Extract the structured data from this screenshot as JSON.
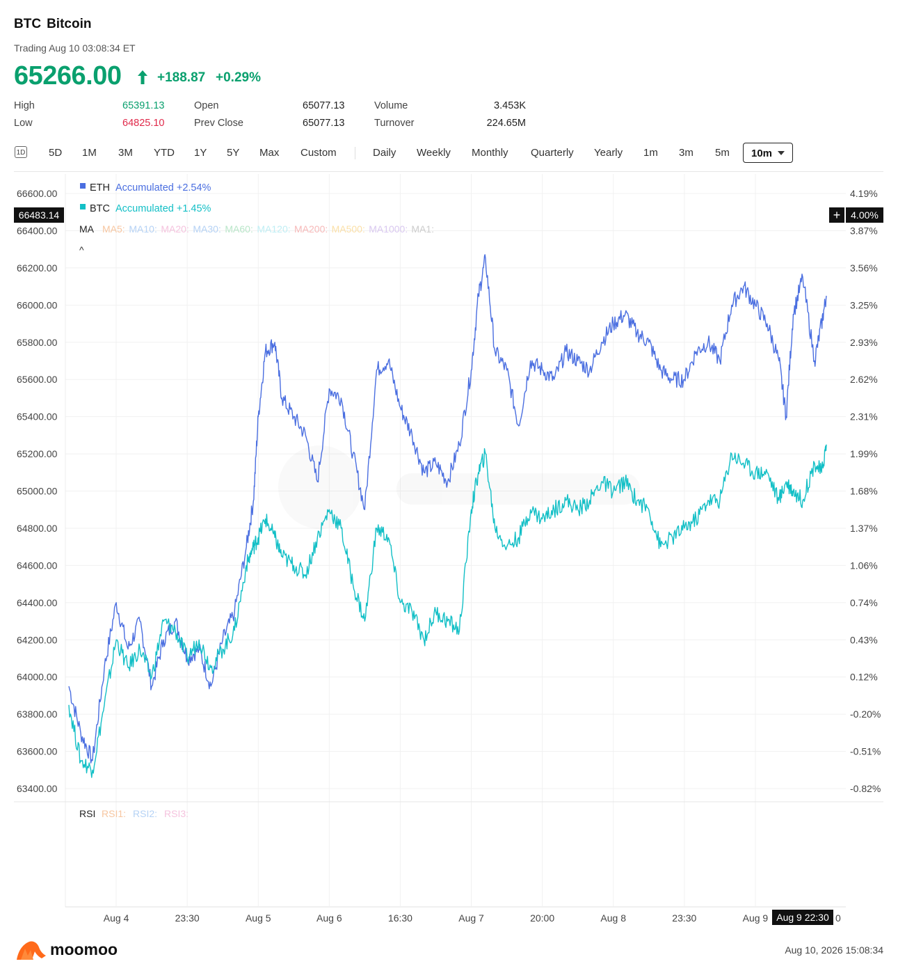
{
  "header": {
    "symbol": "BTC",
    "name": "Bitcoin",
    "trading_status": "Trading Aug 10 03:08:34 ET",
    "price": "65266.00",
    "change": "+188.87",
    "change_pct": "+0.29%"
  },
  "stats": {
    "high_label": "High",
    "high_value": "65391.13",
    "low_label": "Low",
    "low_value": "64825.10",
    "open_label": "Open",
    "open_value": "65077.13",
    "prev_close_label": "Prev Close",
    "prev_close_value": "65077.13",
    "volume_label": "Volume",
    "volume_value": "3.453K",
    "turnover_label": "Turnover",
    "turnover_value": "224.65M"
  },
  "tabs": {
    "range_icon": "1D",
    "ranges": [
      "5D",
      "1M",
      "3M",
      "YTD",
      "1Y",
      "5Y",
      "Max",
      "Custom"
    ],
    "intervals": [
      "Daily",
      "Weekly",
      "Monthly",
      "Quarterly",
      "Yearly",
      "1m",
      "3m",
      "5m"
    ],
    "selected_interval": "10m"
  },
  "legend": {
    "eth_name": "ETH",
    "eth_text": "Accumulated +2.54%",
    "btc_name": "BTC",
    "btc_text": "Accumulated +1.45%",
    "ma_label": "MA",
    "ma_items": [
      "MA5:",
      "MA10:",
      "MA20:",
      "MA30:",
      "MA60:",
      "MA120:",
      "MA200:",
      "MA500:",
      "MA1000:",
      "MA1:"
    ],
    "ma_colors": [
      "#f7c6a0",
      "#b5d2f5",
      "#f5c3de",
      "#b5d2f5",
      "#b9e6c9",
      "#bfeef4",
      "#f7b9b9",
      "#fbe0a8",
      "#d9c8f0",
      "#cccccc"
    ],
    "collapse_glyph": "^",
    "rsi_label": "RSI",
    "rsi_items": [
      "RSI1:",
      "RSI2:",
      "RSI3:"
    ],
    "rsi_colors": [
      "#f7c6a0",
      "#b5d2f5",
      "#f5c3de"
    ]
  },
  "crosshair": {
    "left_value": "66483.14",
    "right_value": "4.00%",
    "plus_glyph": "+",
    "time_label": "Aug 9 22:30",
    "trailing_char": "0"
  },
  "colors": {
    "eth": "#4a6ee0",
    "btc": "#12bfc6",
    "up": "#0aa06e",
    "down": "#e0294a"
  },
  "chart_data": {
    "type": "line",
    "y_left_ticks": [
      "66600.00",
      "66400.00",
      "66200.00",
      "66000.00",
      "65800.00",
      "65600.00",
      "65400.00",
      "65200.00",
      "65000.00",
      "64800.00",
      "64600.00",
      "64400.00",
      "64200.00",
      "64000.00",
      "63800.00",
      "63600.00",
      "63400.00"
    ],
    "y_right_ticks": [
      "4.19%",
      "3.87%",
      "3.56%",
      "3.25%",
      "2.93%",
      "2.62%",
      "2.31%",
      "1.99%",
      "1.68%",
      "1.37%",
      "1.06%",
      "0.74%",
      "0.43%",
      "0.12%",
      "-0.20%",
      "-0.51%",
      "-0.82%"
    ],
    "ylim": [
      63400,
      66600
    ],
    "x_ticks": [
      "Aug 4",
      "23:30",
      "Aug 5",
      "Aug 6",
      "16:30",
      "Aug 7",
      "20:00",
      "Aug 8",
      "23:30",
      "Aug 9"
    ],
    "x_range": [
      0,
      32
    ],
    "x_tick_positions": [
      2,
      5,
      8,
      11,
      14,
      17,
      20,
      23,
      26,
      29
    ],
    "series": [
      {
        "name": "ETH",
        "color": "#4a6ee0",
        "x": [
          0,
          0.5,
          1,
          1.5,
          2,
          2.5,
          3,
          3.5,
          4,
          4.5,
          5,
          5.5,
          6,
          6.5,
          7,
          7.5,
          7.8,
          8,
          8.3,
          8.7,
          9,
          9.5,
          10,
          10.5,
          11,
          11.5,
          12,
          12.5,
          13,
          13.5,
          14,
          14.5,
          15,
          15.5,
          16,
          16.5,
          17,
          17.3,
          17.6,
          18,
          18.5,
          19,
          19.5,
          20,
          20.5,
          21,
          21.5,
          22,
          22.5,
          23,
          23.5,
          24,
          24.5,
          25,
          25.5,
          26,
          26.5,
          27,
          27.5,
          28,
          28.5,
          29,
          29.5,
          30,
          30.3,
          30.6,
          31,
          31.5,
          31.8,
          32
        ],
        "values": [
          63950,
          63700,
          63550,
          64050,
          64400,
          64150,
          64300,
          63950,
          64200,
          64300,
          64100,
          64150,
          63950,
          64200,
          64350,
          64700,
          64950,
          65400,
          65750,
          65800,
          65500,
          65400,
          65300,
          65050,
          65550,
          65500,
          65200,
          64900,
          65650,
          65700,
          65450,
          65300,
          65100,
          65150,
          65050,
          65250,
          65650,
          66050,
          66250,
          65750,
          65650,
          65350,
          65700,
          65650,
          65600,
          65750,
          65700,
          65650,
          65800,
          65900,
          65950,
          65850,
          65800,
          65650,
          65600,
          65600,
          65750,
          65800,
          65700,
          66000,
          66100,
          66000,
          65900,
          65700,
          65400,
          65950,
          66150,
          65700,
          65900,
          66050
        ]
      },
      {
        "name": "BTC",
        "color": "#12bfc6",
        "x": [
          0,
          0.5,
          1,
          1.5,
          2,
          2.5,
          3,
          3.5,
          4,
          4.5,
          5,
          5.5,
          6,
          6.5,
          7,
          7.5,
          7.8,
          8,
          8.3,
          8.7,
          9,
          9.5,
          10,
          10.5,
          11,
          11.5,
          12,
          12.5,
          13,
          13.5,
          14,
          14.5,
          15,
          15.5,
          16,
          16.5,
          17,
          17.3,
          17.6,
          18,
          18.5,
          19,
          19.5,
          20,
          20.5,
          21,
          21.5,
          22,
          22.5,
          23,
          23.5,
          24,
          24.5,
          25,
          25.5,
          26,
          26.5,
          27,
          27.5,
          28,
          28.5,
          29,
          29.5,
          30,
          30.3,
          30.6,
          31,
          31.5,
          31.8,
          32
        ],
        "values": [
          63850,
          63550,
          63500,
          63850,
          64200,
          64050,
          64150,
          64000,
          64300,
          64250,
          64100,
          64200,
          64050,
          64150,
          64250,
          64600,
          64700,
          64750,
          64850,
          64750,
          64650,
          64600,
          64550,
          64750,
          64900,
          64800,
          64500,
          64300,
          64800,
          64750,
          64400,
          64350,
          64200,
          64350,
          64300,
          64250,
          64900,
          65100,
          65200,
          64800,
          64700,
          64750,
          64900,
          64850,
          64900,
          64950,
          64900,
          64950,
          65050,
          65000,
          65050,
          64950,
          64900,
          64700,
          64750,
          64800,
          64850,
          64950,
          64950,
          65200,
          65150,
          65100,
          65100,
          64950,
          65050,
          65000,
          64950,
          65150,
          65100,
          65250
        ]
      }
    ]
  },
  "footer": {
    "brand": "moomoo",
    "timestamp": "Aug 10, 2026 15:08:34"
  }
}
